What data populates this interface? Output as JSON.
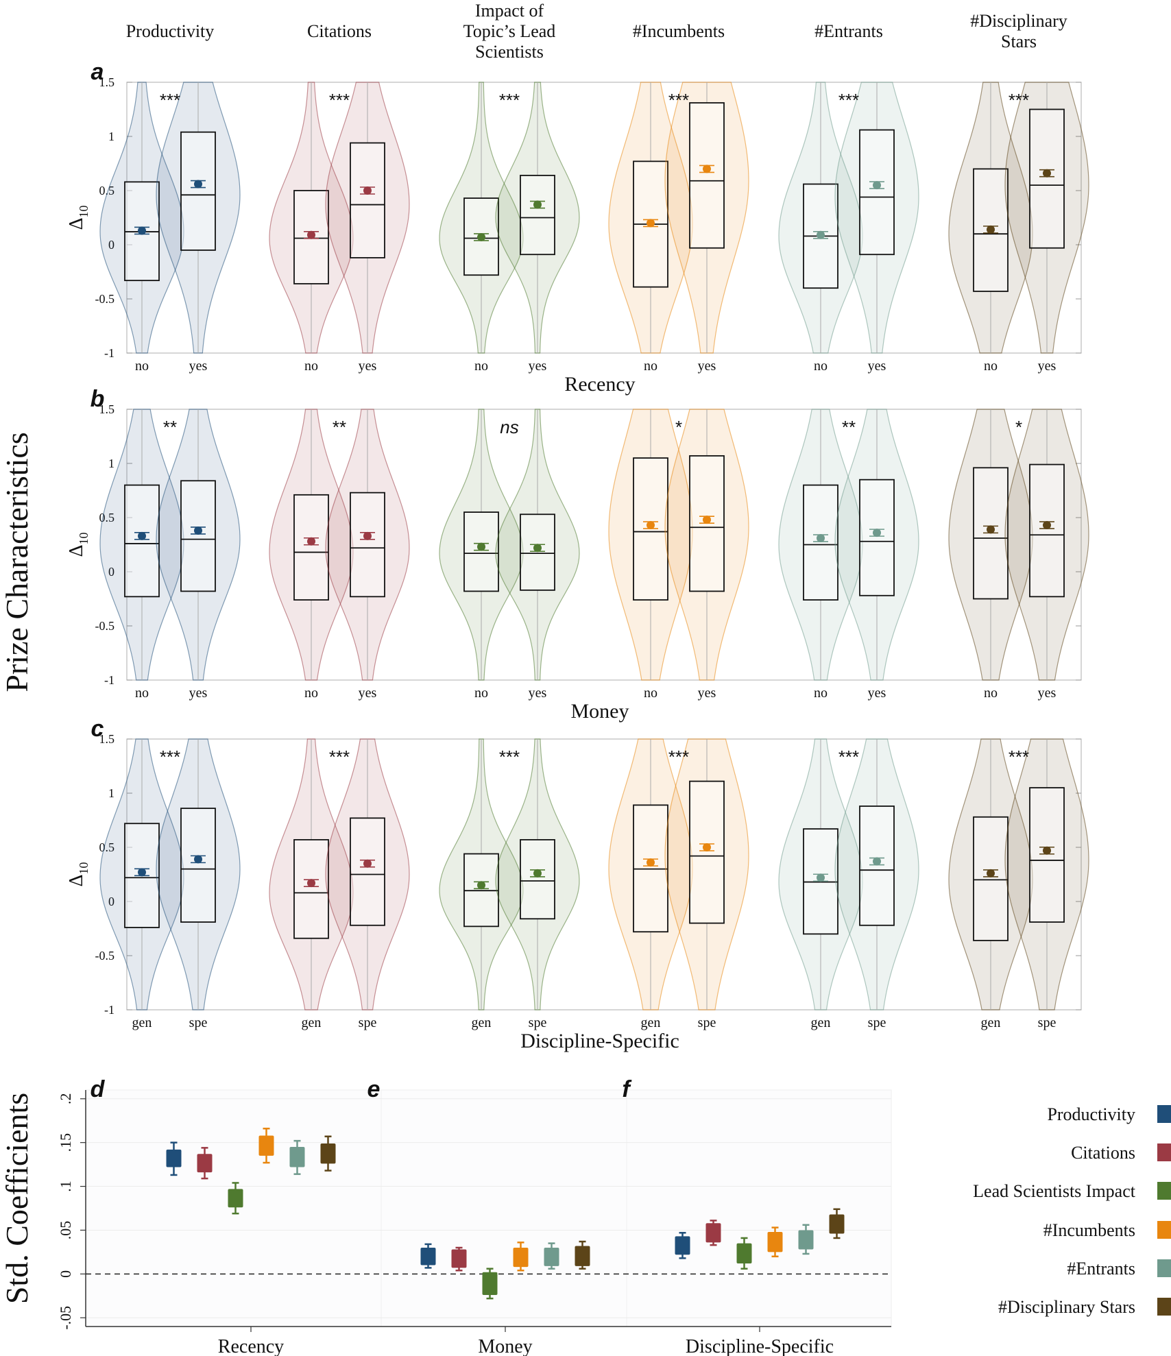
{
  "figure": {
    "ylabel_top": "Prize Characteristics",
    "ylabel_bottom": "Std. Coefficients"
  },
  "colors": {
    "Productivity": "#1f4e79",
    "Citations": "#9b3a44",
    "Lead": "#4f7a2f",
    "Incumbents": "#e8860f",
    "Entrants": "#6f9a8d",
    "Stars": "#5c4418"
  },
  "chart_data": [
    {
      "type": "violin",
      "panel": "a",
      "title_metrics": [
        "Productivity",
        "Citations",
        "Impact of\nTopic’s Lead\nScientists",
        "#Incumbents",
        "#Entrants",
        "#Disciplinary\nStars"
      ],
      "ylabel": "Δ",
      "ylabel_sub": "10",
      "xlabel": "Recency",
      "ylim": [
        -1,
        1.5
      ],
      "yticks": [
        "1.5",
        "1",
        "0.5",
        "0",
        "-0.5",
        "-1"
      ],
      "group_labels": [
        "no",
        "yes"
      ],
      "groups": [
        {
          "metric": "Productivity",
          "sig": "***",
          "stats": [
            {
              "q1": -0.33,
              "median": 0.12,
              "q3": 0.58,
              "mean": 0.13
            },
            {
              "q1": -0.05,
              "median": 0.46,
              "q3": 1.04,
              "mean": 0.56
            }
          ]
        },
        {
          "metric": "Citations",
          "sig": "***",
          "stats": [
            {
              "q1": -0.36,
              "median": 0.06,
              "q3": 0.5,
              "mean": 0.09
            },
            {
              "q1": -0.12,
              "median": 0.37,
              "q3": 0.94,
              "mean": 0.5
            }
          ]
        },
        {
          "metric": "Lead",
          "sig": "***",
          "stats": [
            {
              "q1": -0.28,
              "median": 0.06,
              "q3": 0.43,
              "mean": 0.07
            },
            {
              "q1": -0.09,
              "median": 0.25,
              "q3": 0.64,
              "mean": 0.37
            }
          ]
        },
        {
          "metric": "Incumbents",
          "sig": "***",
          "stats": [
            {
              "q1": -0.39,
              "median": 0.19,
              "q3": 0.77,
              "mean": 0.2
            },
            {
              "q1": -0.03,
              "median": 0.59,
              "q3": 1.31,
              "mean": 0.7
            }
          ]
        },
        {
          "metric": "Entrants",
          "sig": "***",
          "stats": [
            {
              "q1": -0.4,
              "median": 0.08,
              "q3": 0.56,
              "mean": 0.09
            },
            {
              "q1": -0.09,
              "median": 0.44,
              "q3": 1.06,
              "mean": 0.55
            }
          ]
        },
        {
          "metric": "Stars",
          "sig": "***",
          "stats": [
            {
              "q1": -0.43,
              "median": 0.1,
              "q3": 0.7,
              "mean": 0.14
            },
            {
              "q1": -0.03,
              "median": 0.55,
              "q3": 1.25,
              "mean": 0.66
            }
          ]
        }
      ]
    },
    {
      "type": "violin",
      "panel": "b",
      "ylabel": "Δ",
      "ylabel_sub": "10",
      "xlabel": "Money",
      "ylim": [
        -1,
        1.5
      ],
      "yticks": [
        "1.5",
        "1",
        "0.5",
        "0",
        "-0.5",
        "-1"
      ],
      "group_labels": [
        "no",
        "yes"
      ],
      "groups": [
        {
          "metric": "Productivity",
          "sig": "**",
          "stats": [
            {
              "q1": -0.23,
              "median": 0.26,
              "q3": 0.8,
              "mean": 0.33
            },
            {
              "q1": -0.18,
              "median": 0.3,
              "q3": 0.84,
              "mean": 0.38
            }
          ]
        },
        {
          "metric": "Citations",
          "sig": "**",
          "stats": [
            {
              "q1": -0.26,
              "median": 0.18,
              "q3": 0.71,
              "mean": 0.28
            },
            {
              "q1": -0.23,
              "median": 0.22,
              "q3": 0.73,
              "mean": 0.33
            }
          ]
        },
        {
          "metric": "Lead",
          "sig": "ns",
          "stats": [
            {
              "q1": -0.18,
              "median": 0.17,
              "q3": 0.55,
              "mean": 0.23
            },
            {
              "q1": -0.17,
              "median": 0.17,
              "q3": 0.53,
              "mean": 0.22
            }
          ]
        },
        {
          "metric": "Incumbents",
          "sig": "*",
          "stats": [
            {
              "q1": -0.26,
              "median": 0.37,
              "q3": 1.05,
              "mean": 0.43
            },
            {
              "q1": -0.18,
              "median": 0.41,
              "q3": 1.07,
              "mean": 0.48
            }
          ]
        },
        {
          "metric": "Entrants",
          "sig": "**",
          "stats": [
            {
              "q1": -0.26,
              "median": 0.25,
              "q3": 0.8,
              "mean": 0.31
            },
            {
              "q1": -0.22,
              "median": 0.28,
              "q3": 0.85,
              "mean": 0.36
            }
          ]
        },
        {
          "metric": "Stars",
          "sig": "*",
          "stats": [
            {
              "q1": -0.25,
              "median": 0.31,
              "q3": 0.96,
              "mean": 0.39
            },
            {
              "q1": -0.23,
              "median": 0.34,
              "q3": 0.99,
              "mean": 0.43
            }
          ]
        }
      ]
    },
    {
      "type": "violin",
      "panel": "c",
      "ylabel": "Δ",
      "ylabel_sub": "10",
      "xlabel": "Discipline-Specific",
      "ylim": [
        -1,
        1.5
      ],
      "yticks": [
        "1.5",
        "1",
        "0.5",
        "0",
        "-0.5",
        "-1"
      ],
      "group_labels": [
        "gen",
        "spe"
      ],
      "groups": [
        {
          "metric": "Productivity",
          "sig": "***",
          "stats": [
            {
              "q1": -0.24,
              "median": 0.22,
              "q3": 0.72,
              "mean": 0.27
            },
            {
              "q1": -0.19,
              "median": 0.3,
              "q3": 0.86,
              "mean": 0.39
            }
          ]
        },
        {
          "metric": "Citations",
          "sig": "***",
          "stats": [
            {
              "q1": -0.34,
              "median": 0.08,
              "q3": 0.57,
              "mean": 0.17
            },
            {
              "q1": -0.22,
              "median": 0.25,
              "q3": 0.77,
              "mean": 0.35
            }
          ]
        },
        {
          "metric": "Lead",
          "sig": "***",
          "stats": [
            {
              "q1": -0.23,
              "median": 0.1,
              "q3": 0.44,
              "mean": 0.15
            },
            {
              "q1": -0.16,
              "median": 0.19,
              "q3": 0.57,
              "mean": 0.26
            }
          ]
        },
        {
          "metric": "Incumbents",
          "sig": "***",
          "stats": [
            {
              "q1": -0.28,
              "median": 0.3,
              "q3": 0.89,
              "mean": 0.36
            },
            {
              "q1": -0.2,
              "median": 0.42,
              "q3": 1.11,
              "mean": 0.5
            }
          ]
        },
        {
          "metric": "Entrants",
          "sig": "***",
          "stats": [
            {
              "q1": -0.3,
              "median": 0.18,
              "q3": 0.67,
              "mean": 0.22
            },
            {
              "q1": -0.22,
              "median": 0.29,
              "q3": 0.88,
              "mean": 0.37
            }
          ]
        },
        {
          "metric": "Stars",
          "sig": "***",
          "stats": [
            {
              "q1": -0.36,
              "median": 0.2,
              "q3": 0.78,
              "mean": 0.26
            },
            {
              "q1": -0.19,
              "median": 0.38,
              "q3": 1.05,
              "mean": 0.47
            }
          ]
        }
      ]
    },
    {
      "type": "box",
      "panels": [
        "d",
        "e",
        "f"
      ],
      "ylabel": "Std. Coefficients",
      "ylim": [
        -0.06,
        0.21
      ],
      "yticks": [
        "-.05",
        "0",
        ".05",
        ".1",
        ".15",
        ".2"
      ],
      "yticks_values": [
        -0.05,
        0,
        0.05,
        0.1,
        0.15,
        0.2
      ],
      "categories": [
        "Recency",
        "Money",
        "Discipline-Specific"
      ],
      "series_names": [
        "Productivity",
        "Citations",
        "Lead Scientists Impact",
        "#Incumbents",
        "#Entrants",
        "#Disciplinary Stars"
      ],
      "series_keys": [
        "Productivity",
        "Citations",
        "Lead",
        "Incumbents",
        "Entrants",
        "Stars"
      ],
      "legend": "right",
      "values": [
        [
          {
            "low": 0.113,
            "q1": 0.122,
            "q3": 0.142,
            "high": 0.15
          },
          {
            "low": 0.109,
            "q1": 0.116,
            "q3": 0.137,
            "high": 0.144
          },
          {
            "low": 0.069,
            "q1": 0.076,
            "q3": 0.097,
            "high": 0.104
          },
          {
            "low": 0.127,
            "q1": 0.135,
            "q3": 0.158,
            "high": 0.166
          },
          {
            "low": 0.114,
            "q1": 0.122,
            "q3": 0.145,
            "high": 0.152
          },
          {
            "low": 0.118,
            "q1": 0.126,
            "q3": 0.149,
            "high": 0.157
          }
        ],
        [
          {
            "low": 0.007,
            "q1": 0.01,
            "q3": 0.03,
            "high": 0.034
          },
          {
            "low": 0.004,
            "q1": 0.007,
            "q3": 0.028,
            "high": 0.03
          },
          {
            "low": -0.028,
            "q1": -0.024,
            "q3": 0.002,
            "high": 0.006
          },
          {
            "low": 0.004,
            "q1": 0.008,
            "q3": 0.03,
            "high": 0.036
          },
          {
            "low": 0.006,
            "q1": 0.009,
            "q3": 0.03,
            "high": 0.035
          },
          {
            "low": 0.006,
            "q1": 0.009,
            "q3": 0.032,
            "high": 0.037
          }
        ],
        [
          {
            "low": 0.018,
            "q1": 0.022,
            "q3": 0.043,
            "high": 0.047
          },
          {
            "low": 0.033,
            "q1": 0.036,
            "q3": 0.058,
            "high": 0.061
          },
          {
            "low": 0.006,
            "q1": 0.012,
            "q3": 0.035,
            "high": 0.041
          },
          {
            "low": 0.02,
            "q1": 0.025,
            "q3": 0.048,
            "high": 0.053
          },
          {
            "low": 0.023,
            "q1": 0.028,
            "q3": 0.05,
            "high": 0.056
          },
          {
            "low": 0.041,
            "q1": 0.046,
            "q3": 0.068,
            "high": 0.074
          }
        ]
      ]
    }
  ]
}
